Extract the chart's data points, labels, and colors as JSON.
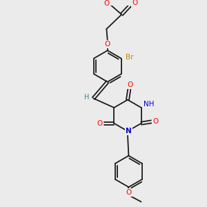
{
  "bg_color": "#ebebeb",
  "bond_color": "#1a1a1a",
  "bond_width": 1.3,
  "atom_colors": {
    "O": "#ff0000",
    "N": "#0000cd",
    "Br": "#b8860b",
    "H": "#2e8b8b",
    "C": "#1a1a1a"
  },
  "font_size": 7.5,
  "fig_width": 3.0,
  "fig_height": 3.0,
  "dpi": 100
}
